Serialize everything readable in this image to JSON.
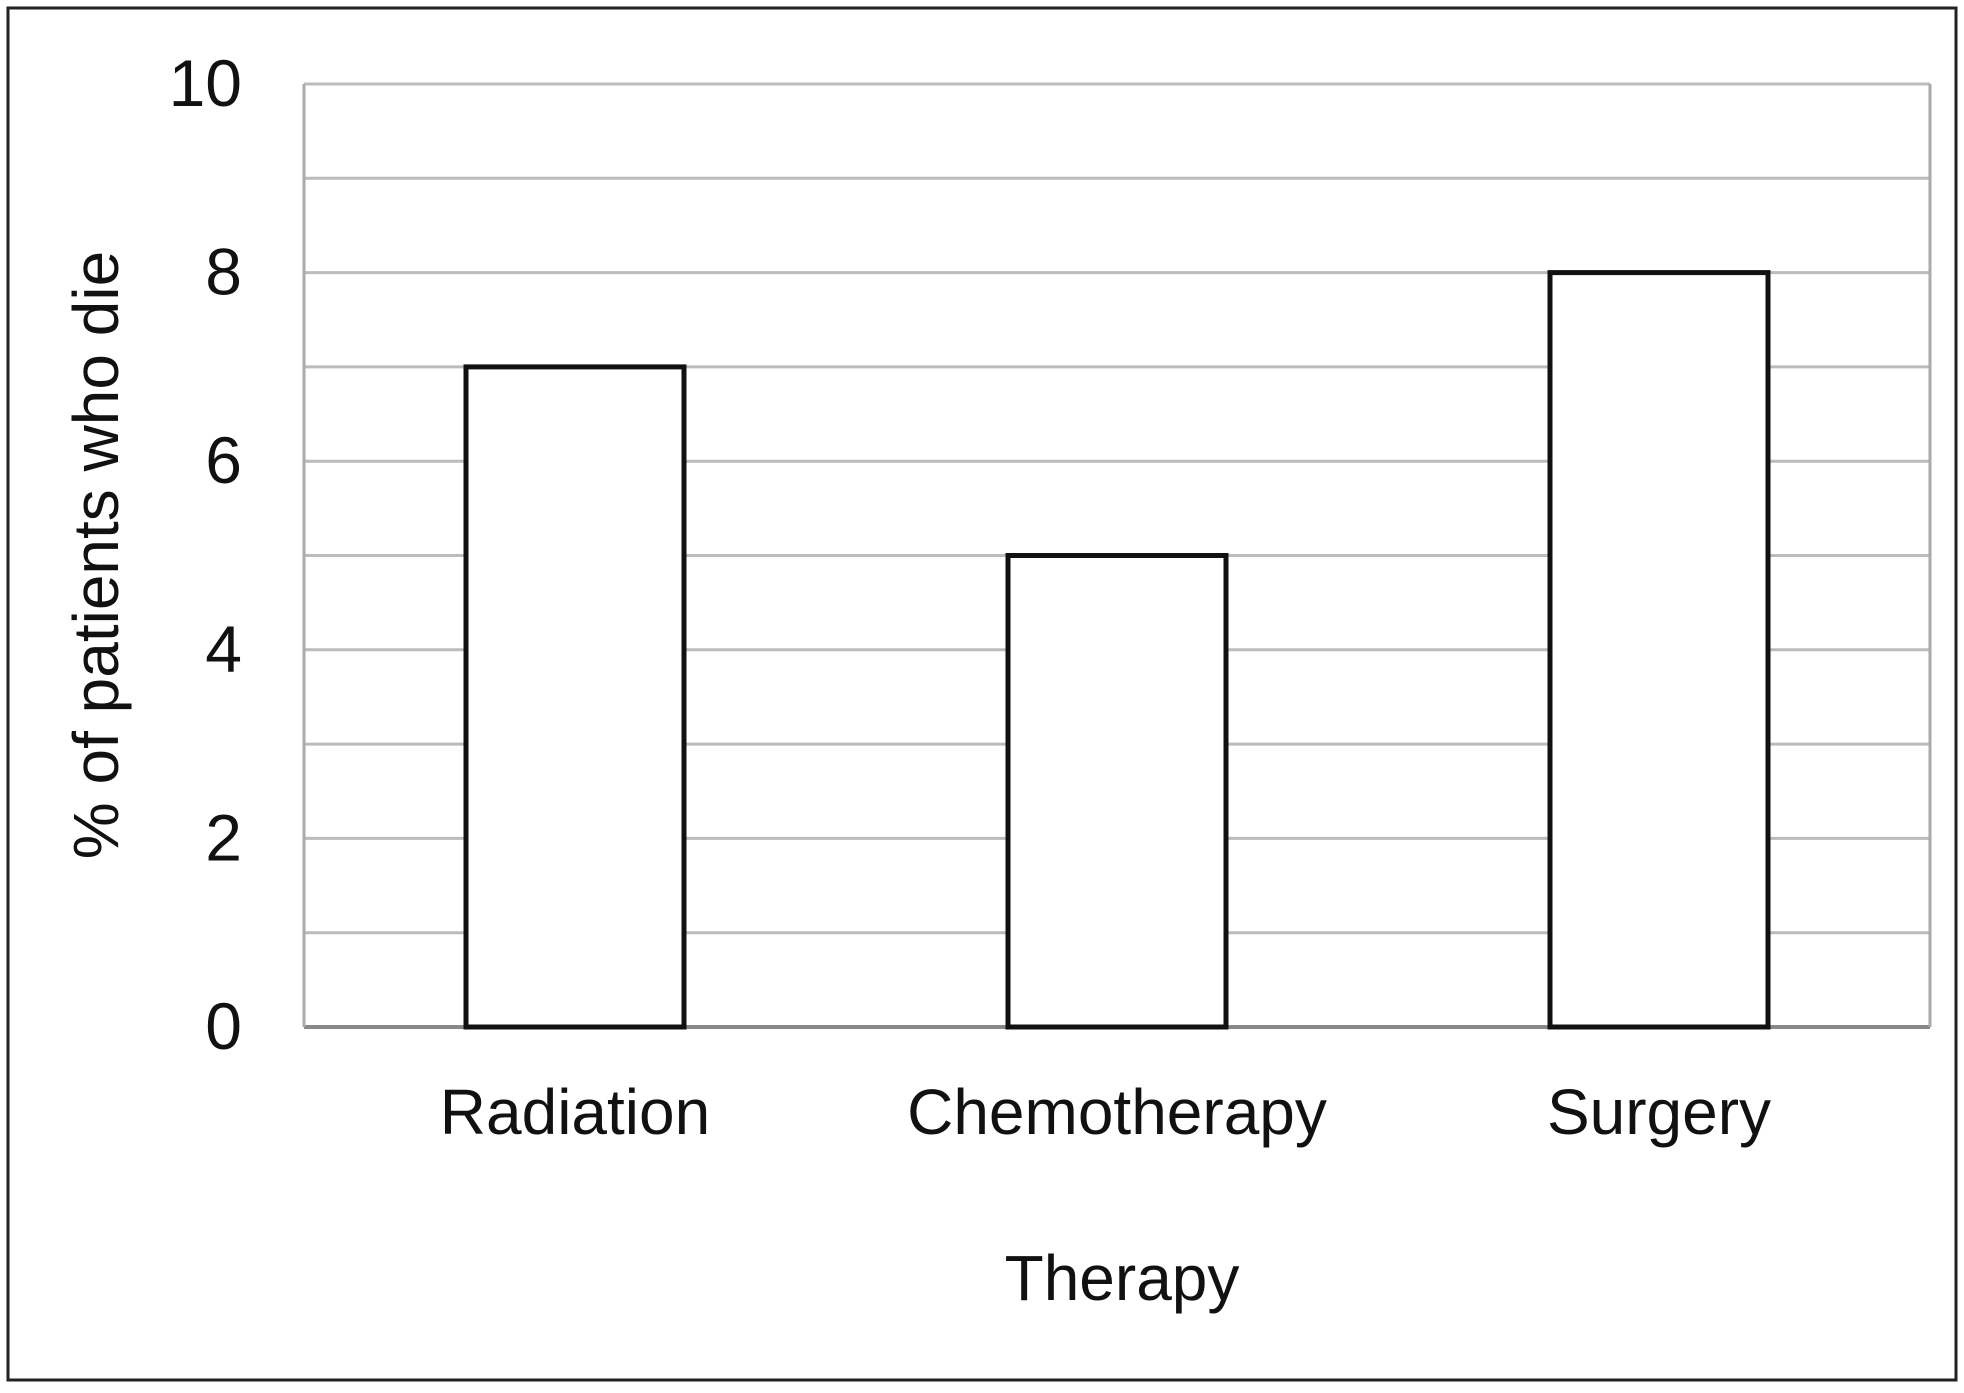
{
  "chart_data": {
    "type": "bar",
    "title": "",
    "xlabel": "Therapy",
    "ylabel": "% of patients who die",
    "categories": [
      "Radiation",
      "Chemotherapy",
      "Surgery"
    ],
    "values": [
      7,
      5,
      8
    ],
    "ylim": [
      0,
      10
    ],
    "yticks": [
      "0",
      "2",
      "4",
      "6",
      "8",
      "10"
    ],
    "grid": true,
    "legend": false,
    "colors": {
      "bar_fill": "#ffffff",
      "bar_stroke": "#111111",
      "grid": "#bbbbbb",
      "frame": "#222222"
    }
  }
}
